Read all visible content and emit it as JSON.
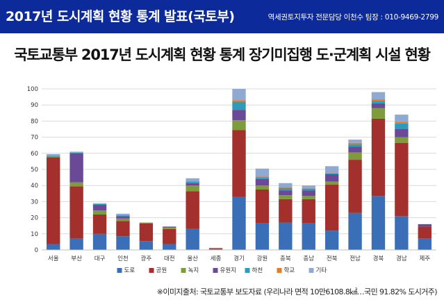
{
  "banner": {
    "title": "2017년 도시계획 현황 통계 발표(국토부)",
    "contact": "역세권토지투자 전문담당 이천수 팀장 : 010-9469-2799"
  },
  "source_note": "※이미지출처: 국토교통부 보도자료 (우리나라 면적 10만6108.8㎢…국민 91.82% 도시거주)",
  "colors": {
    "banner_bg": "#0d2a9a",
    "series": [
      "#3a6fb8",
      "#a3302c",
      "#7e9c3c",
      "#6a4a96",
      "#2f9bb8",
      "#e07c2a",
      "#8fa9d3"
    ]
  },
  "chart_data": {
    "type": "bar",
    "stacked": true,
    "title": "국토교통부 2017년 도시계획 현황 통계 장기미집행 도·군계획 시설 현황",
    "xlabel": "",
    "ylabel": "",
    "ylim": [
      0,
      100
    ],
    "yticks": [
      0,
      10,
      20,
      30,
      40,
      50,
      60,
      70,
      80,
      90,
      100
    ],
    "grid": true,
    "legend_position": "bottom",
    "categories": [
      "서울",
      "부산",
      "대구",
      "인천",
      "광주",
      "대전",
      "울산",
      "세종",
      "경기",
      "강원",
      "충북",
      "충남",
      "전북",
      "전남",
      "경북",
      "경남",
      "제주"
    ],
    "series": [
      {
        "name": "도로",
        "color": "#3a6fb8",
        "values": [
          3.5,
          7,
          10,
          8.5,
          5.5,
          3.5,
          13,
          0.5,
          33,
          16.5,
          17,
          16.5,
          12,
          23,
          33.5,
          21,
          7
        ]
      },
      {
        "name": "공원",
        "color": "#a3302c",
        "values": [
          54,
          32.5,
          12,
          9.5,
          11,
          9.5,
          23.5,
          0.5,
          41.5,
          21,
          14.5,
          15,
          28.5,
          33,
          48,
          45.5,
          7.5
        ]
      },
      {
        "name": "녹지",
        "color": "#7e9c3c",
        "values": [
          0.5,
          2.5,
          2.5,
          1.5,
          0.5,
          1,
          3.5,
          0.2,
          6,
          2.5,
          2.5,
          2,
          2,
          4.5,
          6.5,
          3.5,
          0
        ]
      },
      {
        "name": "유원지",
        "color": "#6a4a96",
        "values": [
          0,
          18,
          3.5,
          1.5,
          0,
          0.5,
          1.5,
          0.1,
          6.5,
          4,
          3,
          3.5,
          4.5,
          3.5,
          3,
          5,
          1.5
        ]
      },
      {
        "name": "하천",
        "color": "#2f9bb8",
        "values": [
          0.5,
          0.5,
          0.5,
          0.5,
          0,
          0,
          1,
          0,
          5,
          1,
          1.5,
          1,
          0.5,
          1.5,
          1.5,
          3.5,
          0
        ]
      },
      {
        "name": "학교",
        "color": "#e07c2a",
        "values": [
          0,
          0,
          0,
          0,
          0,
          0,
          0,
          0,
          1,
          0.5,
          0.5,
          0.5,
          0.5,
          1,
          1,
          1,
          0
        ]
      },
      {
        "name": "기타",
        "color": "#8fa9d3",
        "values": [
          1,
          0.5,
          0.5,
          1,
          0,
          0,
          2,
          0,
          7,
          5,
          2.5,
          1.5,
          4,
          2,
          4.5,
          4.5,
          0
        ]
      }
    ]
  }
}
